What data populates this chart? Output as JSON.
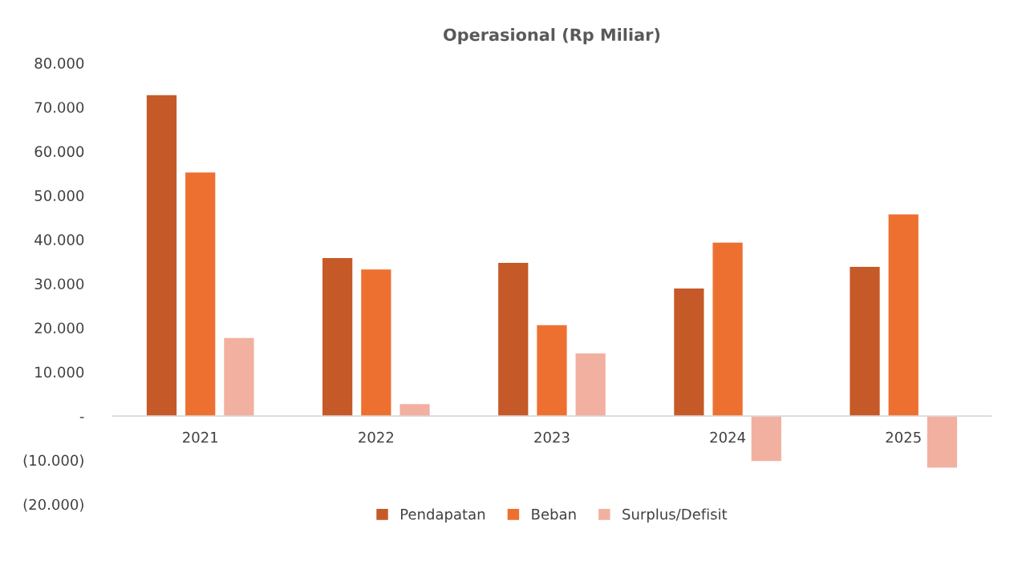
{
  "chart_data": {
    "type": "bar",
    "title": "Operasional (Rp Miliar)",
    "categories": [
      "2021",
      "2022",
      "2023",
      "2024",
      "2025"
    ],
    "series": [
      {
        "name": "Pendapatan",
        "color": "#c55a28",
        "values": [
          72700,
          35800,
          34700,
          28900,
          33800
        ]
      },
      {
        "name": "Beban",
        "color": "#ed7031",
        "values": [
          55200,
          33200,
          20600,
          39300,
          45700
        ]
      },
      {
        "name": "Surplus/Defisit",
        "color": "#f2b0a0",
        "values": [
          17700,
          2700,
          14200,
          -10200,
          -11700
        ]
      }
    ],
    "ylim": [
      -20000,
      80000
    ],
    "yticks": [
      {
        "value": -20000,
        "label": "(20.000)"
      },
      {
        "value": -10000,
        "label": "(10.000)"
      },
      {
        "value": 0,
        "label": "-"
      },
      {
        "value": 10000,
        "label": "10.000"
      },
      {
        "value": 20000,
        "label": "20.000"
      },
      {
        "value": 30000,
        "label": "30.000"
      },
      {
        "value": 40000,
        "label": "40.000"
      },
      {
        "value": 50000,
        "label": "50.000"
      },
      {
        "value": 60000,
        "label": "60.000"
      },
      {
        "value": 70000,
        "label": "70.000"
      },
      {
        "value": 80000,
        "label": "80.000"
      }
    ],
    "grid": false,
    "legend": "bottom"
  }
}
